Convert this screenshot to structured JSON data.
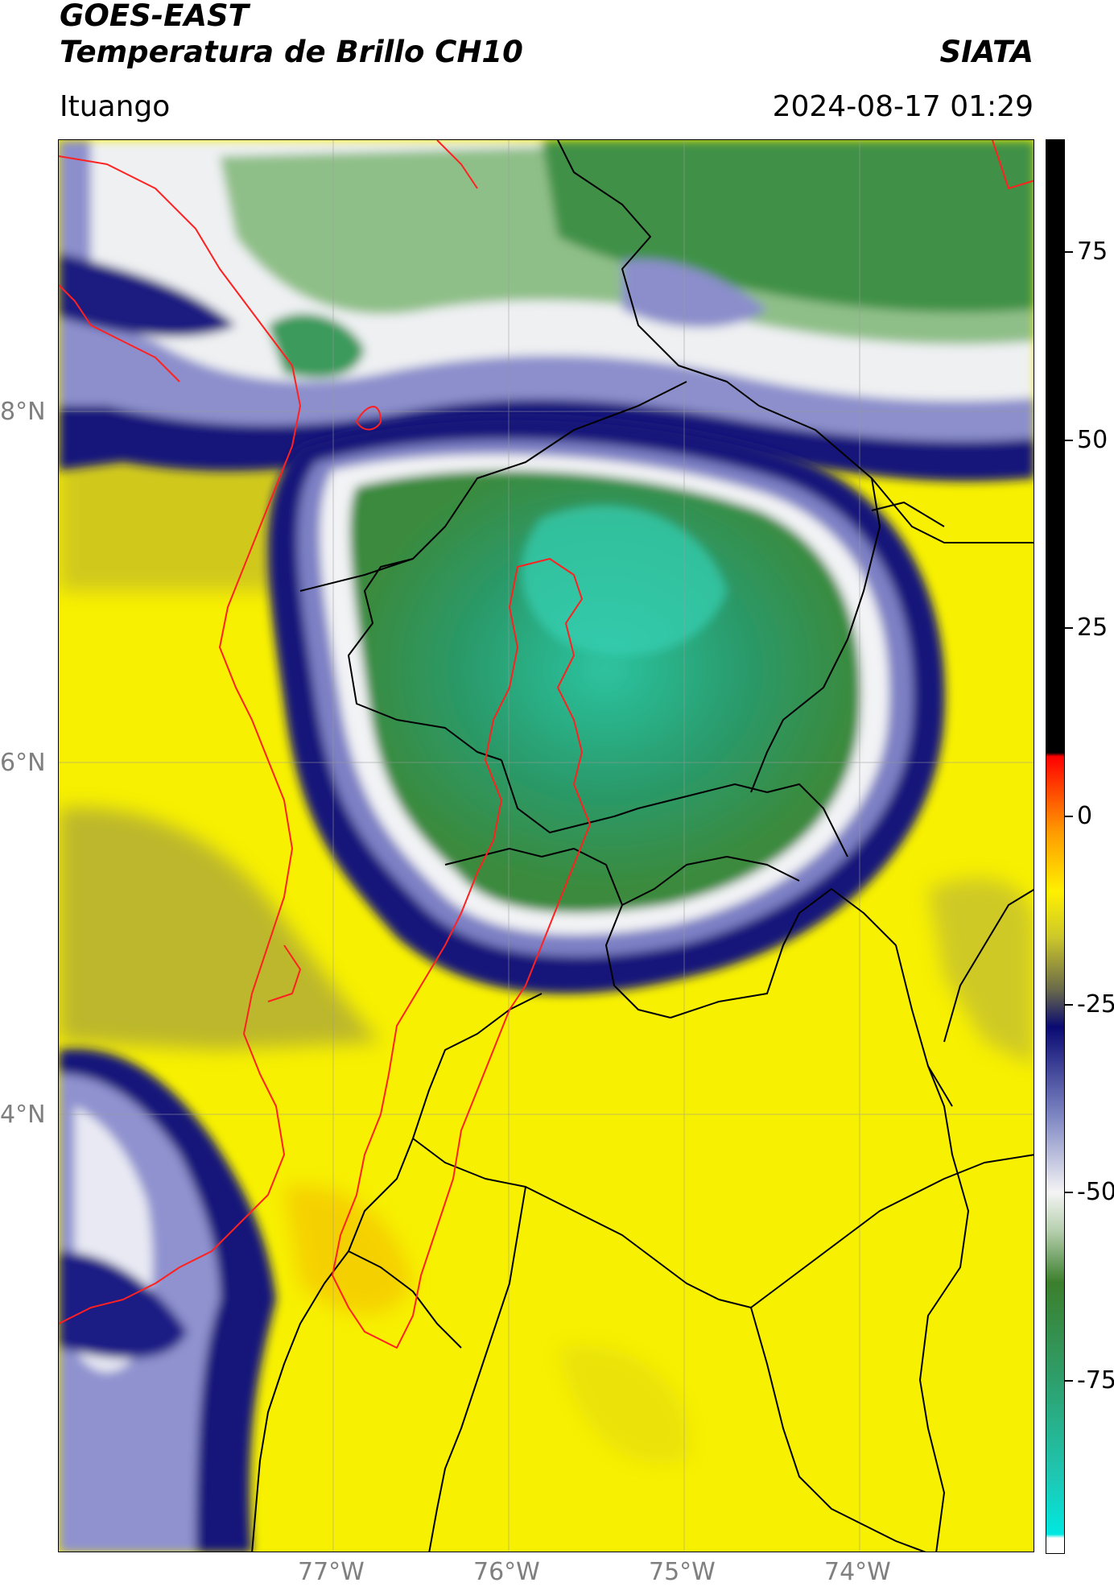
{
  "header": {
    "title_line1": "GOES-EAST",
    "title_line2": "Temperatura de Brillo CH10",
    "brand": "SIATA",
    "location": "Ituango",
    "timestamp": "2024-08-17 01:29"
  },
  "map": {
    "lat_labels": [
      "8°N",
      "6°N",
      "4°N"
    ],
    "lon_labels": [
      "77°W",
      "76°W",
      "75°W",
      "74°W"
    ],
    "lat_values": [
      8,
      6,
      4
    ],
    "lon_values": [
      -77,
      -76,
      -75,
      -74
    ],
    "colors": {
      "warm": "#f7f000",
      "warm_dark": "#b0a826",
      "cold_edge": "#16197a",
      "cold_mid": "#8c8fcc",
      "white_band": "#f1f3f5",
      "cloud_green": "#3a8f45",
      "cloud_teal": "#25b890",
      "boundaries": "#000000",
      "coast_and_basin": "#ff2020"
    }
  },
  "colorbar": {
    "tick_labels": [
      "75",
      "50",
      "25",
      "0",
      "-25",
      "-50",
      "-75"
    ],
    "tick_values": [
      75,
      50,
      25,
      0,
      -25,
      -50,
      -75
    ],
    "min": -98,
    "max": 90,
    "stops": [
      {
        "v": -98,
        "c": "#ffffff"
      },
      {
        "v": -96,
        "c": "#ffffff"
      },
      {
        "v": -95.5,
        "c": "#00e8e0"
      },
      {
        "v": -88,
        "c": "#1ec8b4"
      },
      {
        "v": -75,
        "c": "#2e9f6c"
      },
      {
        "v": -62,
        "c": "#3b7f2c"
      },
      {
        "v": -55,
        "c": "#b8d0b0"
      },
      {
        "v": -50,
        "c": "#f4f4f4"
      },
      {
        "v": -40,
        "c": "#8088c4"
      },
      {
        "v": -28,
        "c": "#0a0a72"
      },
      {
        "v": -23,
        "c": "#6a6a4a"
      },
      {
        "v": -16,
        "c": "#cdc82a"
      },
      {
        "v": -10,
        "c": "#fff000"
      },
      {
        "v": -2,
        "c": "#ff9a00"
      },
      {
        "v": 6,
        "c": "#ff2000"
      },
      {
        "v": 8,
        "c": "#ff0000"
      },
      {
        "v": 8.5,
        "c": "#000000"
      },
      {
        "v": 90,
        "c": "#000000"
      }
    ]
  }
}
